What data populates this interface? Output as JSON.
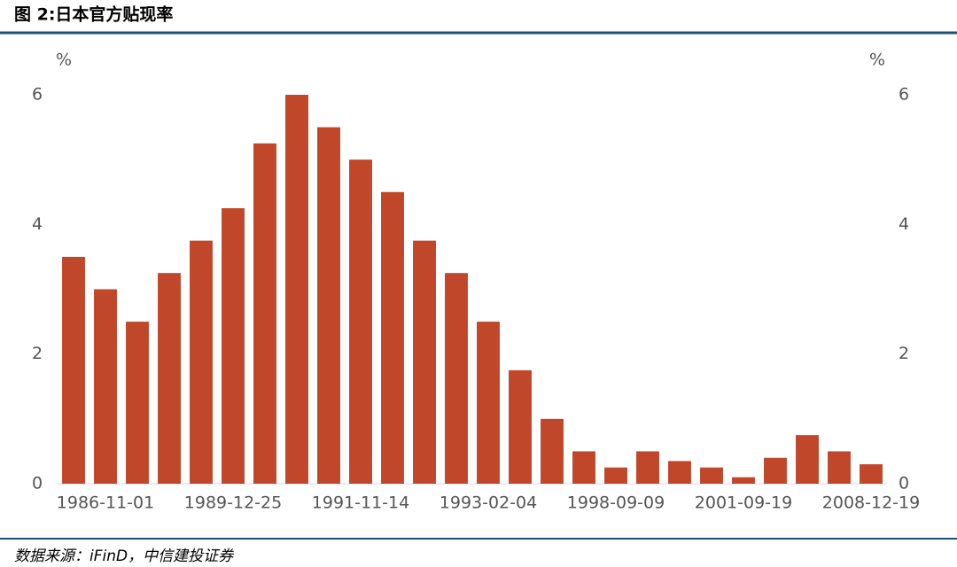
{
  "chart_data": {
    "type": "bar",
    "title": "图 2:日本官方贴现率",
    "source": "数据来源：iFinD，中信建投证券",
    "y_label": "%",
    "y2_label": "%",
    "categories": [
      null,
      "1986-11-01",
      null,
      null,
      null,
      "1989-12-25",
      null,
      null,
      null,
      "1991-11-14",
      null,
      null,
      null,
      "1993-02-04",
      null,
      null,
      null,
      "1998-09-09",
      null,
      null,
      null,
      "2001-09-19",
      null,
      null,
      null,
      "2008-12-19"
    ],
    "values": [
      3.5,
      3.0,
      2.5,
      3.25,
      3.75,
      4.25,
      5.25,
      6.0,
      5.5,
      5.0,
      4.5,
      3.75,
      3.25,
      2.5,
      1.75,
      1.0,
      0.5,
      0.25,
      0.5,
      0.35,
      0.25,
      0.1,
      0.4,
      0.75,
      0.5,
      0.3
    ],
    "color": "#c1472a",
    "ylim": [
      0,
      6
    ],
    "yticks": [
      0,
      2,
      4,
      6
    ],
    "y2lim": [
      0,
      6
    ],
    "y2ticks": [
      0,
      2,
      4,
      6
    ],
    "grid": false
  }
}
